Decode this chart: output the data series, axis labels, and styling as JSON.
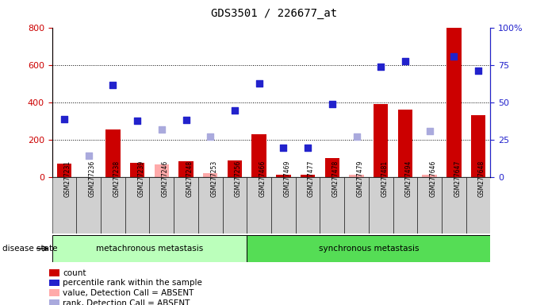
{
  "title": "GDS3501 / 226677_at",
  "samples": [
    "GSM277231",
    "GSM277236",
    "GSM277238",
    "GSM277239",
    "GSM277246",
    "GSM277248",
    "GSM277253",
    "GSM277256",
    "GSM277466",
    "GSM277469",
    "GSM277477",
    "GSM277478",
    "GSM277479",
    "GSM277481",
    "GSM277494",
    "GSM277646",
    "GSM277647",
    "GSM277648"
  ],
  "group1_label": "metachronous metastasis",
  "group2_label": "synchronous metastasis",
  "group1_count": 8,
  "group2_count": 10,
  "bar_values": [
    70,
    0,
    255,
    75,
    0,
    85,
    0,
    90,
    230,
    10,
    10,
    100,
    0,
    390,
    360,
    0,
    800,
    330
  ],
  "blue_square_values": [
    310,
    0,
    490,
    300,
    0,
    305,
    0,
    355,
    500,
    155,
    155,
    390,
    0,
    590,
    620,
    0,
    645,
    570
  ],
  "absent_bar_values": [
    0,
    0,
    0,
    0,
    65,
    0,
    20,
    0,
    0,
    0,
    0,
    0,
    10,
    0,
    0,
    10,
    0,
    0
  ],
  "absent_rank_values": [
    0,
    115,
    0,
    0,
    255,
    0,
    215,
    0,
    0,
    0,
    0,
    0,
    215,
    0,
    0,
    245,
    0,
    0
  ],
  "left_ylim": [
    0,
    800
  ],
  "left_yticks": [
    0,
    200,
    400,
    600,
    800
  ],
  "right_yticks": [
    0,
    25,
    50,
    75,
    100
  ],
  "bar_color": "#cc0000",
  "blue_color": "#2222cc",
  "absent_bar_color": "#ffaaaa",
  "absent_rank_color": "#aaaadd",
  "group1_bg": "#bbffbb",
  "group2_bg": "#55dd55",
  "left_axis_color": "#cc0000",
  "right_axis_color": "#2222cc",
  "legend_items": [
    "count",
    "percentile rank within the sample",
    "value, Detection Call = ABSENT",
    "rank, Detection Call = ABSENT"
  ],
  "legend_colors": [
    "#cc0000",
    "#2222cc",
    "#ffaaaa",
    "#aaaadd"
  ],
  "disease_state_label": "disease state"
}
